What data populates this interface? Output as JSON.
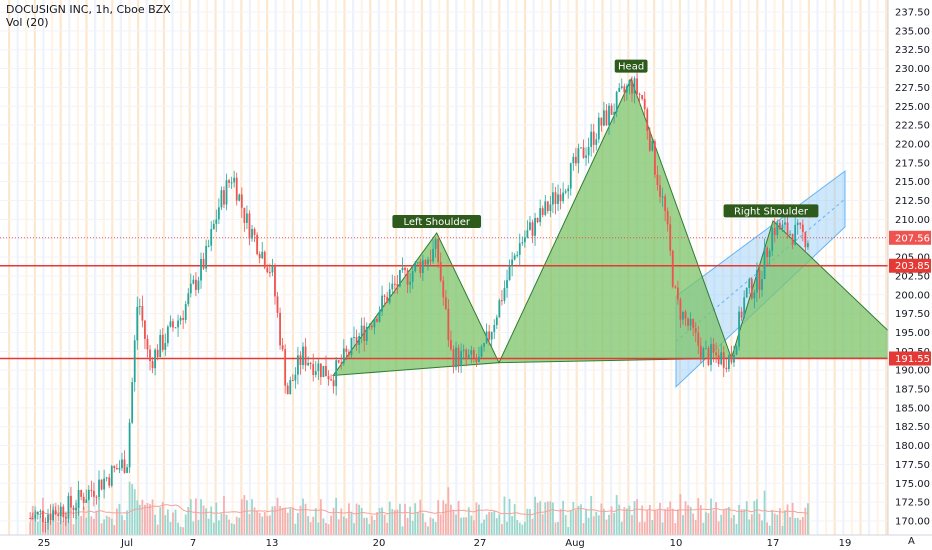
{
  "header": {
    "title": "DOCUSIGN INC, 1h, Cboe BZX",
    "volume_label": "Vol (20)"
  },
  "axis_corner_label": "A",
  "colors": {
    "up": "#26a69a",
    "down": "#ef5350",
    "pattern_fill": "#7cc46a",
    "pattern_stroke": "#2e7d32",
    "channel_fill": "#90caf9",
    "level_line": "#e53935",
    "last_price": "#ef5350",
    "annotation_bg": "#2e5a1c"
  },
  "chart_data": {
    "type": "candlestick",
    "title": "DOCUSIGN INC, 1h, Cboe BZX",
    "ylim": [
      169.2,
      238.5
    ],
    "y_ticks": [
      "170.00",
      "172.50",
      "175.00",
      "177.50",
      "180.00",
      "182.50",
      "185.00",
      "187.50",
      "190.00",
      "192.50",
      "195.00",
      "197.50",
      "200.00",
      "202.50",
      "205.00",
      "207.50",
      "210.00",
      "212.50",
      "215.00",
      "217.50",
      "220.00",
      "222.50",
      "225.00",
      "227.50",
      "230.00",
      "232.50",
      "235.00",
      "237.50"
    ],
    "x_ticks": [
      "25",
      "Jul",
      "7",
      "13",
      "20",
      "27",
      "Aug",
      "10",
      "17",
      "19"
    ],
    "levels": [
      {
        "label": "203.85",
        "value": 203.85,
        "kind": "resistance"
      },
      {
        "label": "191.55",
        "value": 191.55,
        "kind": "neckline"
      }
    ],
    "last_price": {
      "label": "207.56",
      "value": 207.56
    },
    "annotations": [
      {
        "text": "Left Shoulder",
        "value": 208.2
      },
      {
        "text": "Head",
        "value": 228.8
      },
      {
        "text": "Right Shoulder",
        "value": 209.6
      }
    ],
    "pattern": "head and shoulders",
    "pattern_points": [
      {
        "date": "Jul 17",
        "value": 189.3
      },
      {
        "date": "Jul 24",
        "value": 208.2
      },
      {
        "date": "Jul 28",
        "value": 191.0
      },
      {
        "date": "Aug 6",
        "value": 228.6
      },
      {
        "date": "Aug 14",
        "value": 191.6
      },
      {
        "date": "Aug 17",
        "value": 209.8
      },
      {
        "date": "Aug 21",
        "value": 191.6
      }
    ],
    "channel": {
      "lower": [
        {
          "date": "Aug 10",
          "value": 187.8
        },
        {
          "date": "Aug 19",
          "value": 209.0
        }
      ],
      "upper": [
        {
          "date": "Aug 10",
          "value": 199.8
        },
        {
          "date": "Aug 19",
          "value": 216.4
        }
      ]
    },
    "price_path": [
      {
        "date": "Jun 24",
        "value": 170.4
      },
      {
        "date": "Jun 27",
        "value": 172.0
      },
      {
        "date": "Jul 1",
        "value": 178.0
      },
      {
        "date": "Jul 2",
        "value": 200.0
      },
      {
        "date": "Jul 3",
        "value": 191.0
      },
      {
        "date": "Jul 6",
        "value": 197.5
      },
      {
        "date": "Jul 8",
        "value": 205.0
      },
      {
        "date": "Jul 9",
        "value": 212.0
      },
      {
        "date": "Jul 10",
        "value": 216.0
      },
      {
        "date": "Jul 11",
        "value": 210.0
      },
      {
        "date": "Jul 13",
        "value": 203.0
      },
      {
        "date": "Jul 14",
        "value": 187.0
      },
      {
        "date": "Jul 15",
        "value": 192.0
      },
      {
        "date": "Jul 16",
        "value": 190.5
      },
      {
        "date": "Jul 17",
        "value": 189.3
      },
      {
        "date": "Jul 21",
        "value": 201.0
      },
      {
        "date": "Jul 24",
        "value": 206.0
      },
      {
        "date": "Jul 25",
        "value": 192.0
      },
      {
        "date": "Jul 27",
        "value": 191.0
      },
      {
        "date": "Jul 29",
        "value": 206.5
      },
      {
        "date": "Jul 31",
        "value": 213.0
      },
      {
        "date": "Aug 3",
        "value": 222.0
      },
      {
        "date": "Aug 6",
        "value": 228.0
      },
      {
        "date": "Aug 7",
        "value": 226.0
      },
      {
        "date": "Aug 8",
        "value": 218.0
      },
      {
        "date": "Aug 9",
        "value": 211.0
      },
      {
        "date": "Aug 10",
        "value": 199.0
      },
      {
        "date": "Aug 12",
        "value": 192.0
      },
      {
        "date": "Aug 14",
        "value": 191.6
      },
      {
        "date": "Aug 15",
        "value": 200.0
      },
      {
        "date": "Aug 16",
        "value": 202.0
      },
      {
        "date": "Aug 17",
        "value": 209.0
      },
      {
        "date": "Aug 18",
        "value": 207.56
      }
    ],
    "volume_ylim": [
      0,
      5
    ]
  }
}
